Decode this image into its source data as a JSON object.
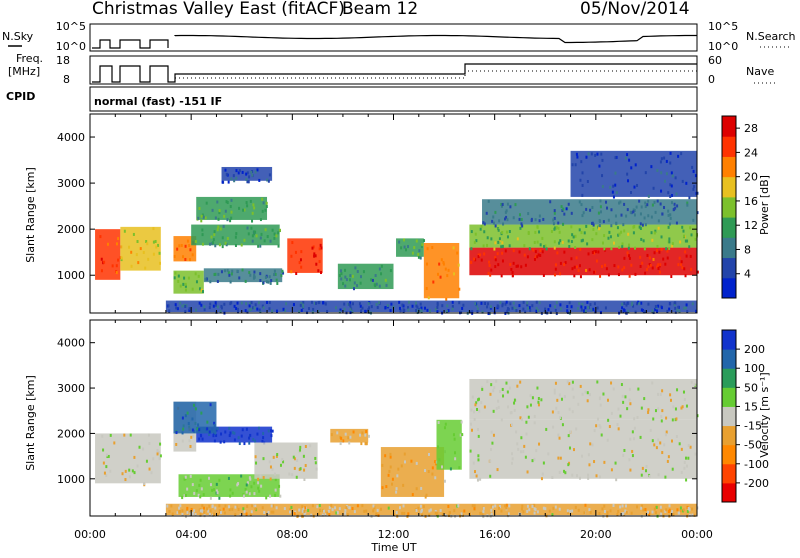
{
  "title": {
    "radar": "Christmas Valley East (fitACF)",
    "beam": "Beam 12",
    "date": "05/Nov/2014"
  },
  "params": {
    "nsky_label": "N.Sky",
    "nsearch_label": "N.Search",
    "freq_label": "Freq.",
    "freq_unit": "[MHz]",
    "nave_label": "Nave",
    "cpid_label": "CPID",
    "cpid_value": "normal (fast) -151 IF",
    "noise_ticks": [
      "10^5",
      "10^0"
    ],
    "freq_ticks": [
      "18",
      "8"
    ],
    "nave_ticks": [
      "60",
      "0"
    ]
  },
  "x_axis": {
    "label": "Time UT",
    "ticks": [
      "00:00",
      "04:00",
      "08:00",
      "12:00",
      "16:00",
      "20:00",
      "00:00"
    ]
  },
  "chart_data": [
    {
      "type": "heatmap",
      "name": "power",
      "ylabel": "Slant Range [km]",
      "yticks": [
        "1000",
        "2000",
        "3000",
        "4000"
      ],
      "xlim_hours": [
        0,
        24
      ],
      "ylim_km": [
        180,
        4500
      ],
      "colorbar": {
        "label": "Power [dB]",
        "ticks": [
          "4",
          "8",
          "12",
          "16",
          "20",
          "24",
          "28"
        ],
        "range": [
          0,
          30
        ],
        "colors": [
          "#0022cc",
          "#2244aa",
          "#3a7a8a",
          "#2f9a55",
          "#7cc02c",
          "#e8c020",
          "#ff8000",
          "#ff3300",
          "#dd0000"
        ]
      },
      "regions": [
        {
          "t0": 0.2,
          "t1": 1.2,
          "r0": 900,
          "r1": 2000,
          "value": 24
        },
        {
          "t0": 1.2,
          "t1": 2.8,
          "r0": 1100,
          "r1": 2050,
          "value": 18
        },
        {
          "t0": 3.3,
          "t1": 4.2,
          "r0": 1300,
          "r1": 1850,
          "value": 22
        },
        {
          "t0": 4.0,
          "t1": 7.5,
          "r0": 1650,
          "r1": 2100,
          "value": 12
        },
        {
          "t0": 4.2,
          "t1": 7.0,
          "r0": 2200,
          "r1": 2700,
          "value": 12
        },
        {
          "t0": 3.3,
          "t1": 4.5,
          "r0": 600,
          "r1": 1100,
          "value": 14
        },
        {
          "t0": 4.5,
          "t1": 7.6,
          "r0": 850,
          "r1": 1150,
          "value": 8
        },
        {
          "t0": 7.8,
          "t1": 9.2,
          "r0": 1050,
          "r1": 1800,
          "value": 26
        },
        {
          "t0": 5.2,
          "t1": 7.2,
          "r0": 3050,
          "r1": 3350,
          "value": 6
        },
        {
          "t0": 9.8,
          "t1": 12.0,
          "r0": 700,
          "r1": 1250,
          "value": 10
        },
        {
          "t0": 12.1,
          "t1": 13.2,
          "r0": 1400,
          "r1": 1800,
          "value": 12
        },
        {
          "t0": 13.2,
          "t1": 14.6,
          "r0": 500,
          "r1": 1700,
          "value": 22
        },
        {
          "t0": 15.0,
          "t1": 24.0,
          "r0": 1000,
          "r1": 1600,
          "value": 27
        },
        {
          "t0": 15.0,
          "t1": 24.0,
          "r0": 1600,
          "r1": 2100,
          "value": 14
        },
        {
          "t0": 15.5,
          "t1": 24.0,
          "r0": 2100,
          "r1": 2650,
          "value": 7
        },
        {
          "t0": 19.0,
          "t1": 24.0,
          "r0": 2700,
          "r1": 3700,
          "value": 4
        },
        {
          "t0": 3.0,
          "t1": 24.0,
          "r0": 200,
          "r1": 450,
          "value": 5
        }
      ]
    },
    {
      "type": "heatmap",
      "name": "velocity",
      "ylabel": "Slant Range [km]",
      "yticks": [
        "1000",
        "2000",
        "3000",
        "4000"
      ],
      "xlim_hours": [
        0,
        24
      ],
      "ylim_km": [
        180,
        4500
      ],
      "colorbar": {
        "label": "Velocity [m s⁻¹]",
        "ticks": [
          "200",
          "100",
          "50",
          "15",
          "-15",
          "-50",
          "-100",
          "-200"
        ],
        "range": [
          -250,
          250
        ],
        "colors": [
          "#e80000",
          "#ff4400",
          "#ff8800",
          "#e8a030",
          "#c8c8c0",
          "#66cc33",
          "#2a9c5a",
          "#2266aa",
          "#1133cc"
        ]
      },
      "regions": [
        {
          "t0": 0.2,
          "t1": 2.8,
          "r0": 900,
          "r1": 2000,
          "value": 0
        },
        {
          "t0": 3.3,
          "t1": 4.2,
          "r0": 1600,
          "r1": 2700,
          "value": 0
        },
        {
          "t0": 4.2,
          "t1": 7.2,
          "r0": 1800,
          "r1": 2150,
          "value": 210
        },
        {
          "t0": 3.3,
          "t1": 5.0,
          "r0": 2000,
          "r1": 2700,
          "value": 150
        },
        {
          "t0": 3.5,
          "t1": 7.5,
          "r0": 600,
          "r1": 1100,
          "value": 40
        },
        {
          "t0": 6.5,
          "t1": 9.0,
          "r0": 1000,
          "r1": 1800,
          "value": 0
        },
        {
          "t0": 9.5,
          "t1": 11.0,
          "r0": 1800,
          "r1": 2100,
          "value": -40
        },
        {
          "t0": 11.5,
          "t1": 14.0,
          "r0": 600,
          "r1": 1700,
          "value": -60
        },
        {
          "t0": 13.7,
          "t1": 14.7,
          "r0": 1200,
          "r1": 2300,
          "value": 40
        },
        {
          "t0": 15.0,
          "t1": 24.0,
          "r0": 1000,
          "r1": 2300,
          "value": 0
        },
        {
          "t0": 15.0,
          "t1": 24.0,
          "r0": 2300,
          "r1": 3200,
          "value": 0
        },
        {
          "t0": 3.0,
          "t1": 24.0,
          "r0": 200,
          "r1": 450,
          "value": -30
        }
      ]
    }
  ]
}
